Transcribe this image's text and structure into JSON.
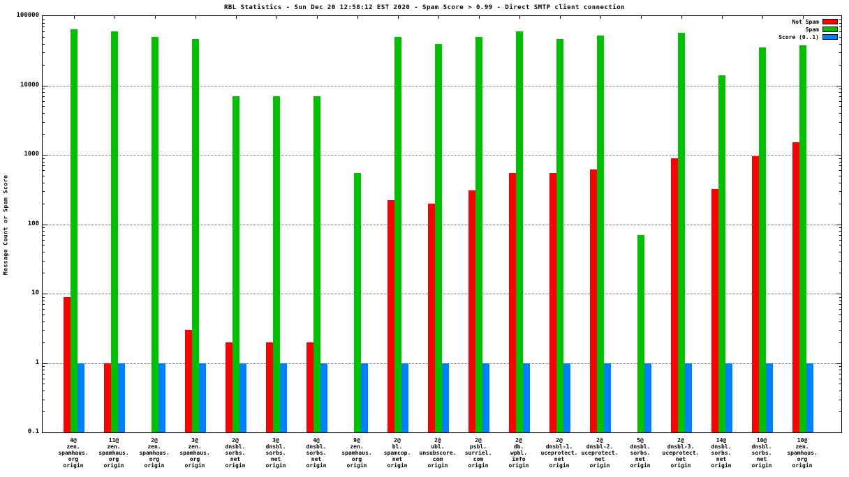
{
  "chart_data": {
    "type": "bar",
    "title": "RBL Statistics - Sun Dec 20 12:58:12 EST 2020 - Spam Score > 0.99 - Direct SMTP client connection",
    "ylabel": "Message Count or Spam Score",
    "yscale": "log",
    "ylim": [
      0.1,
      100000
    ],
    "ytick_labels": [
      "100000",
      "10000",
      "1000",
      "100",
      "10",
      "1",
      "0.1"
    ],
    "grid": true,
    "legend_position": "top-right",
    "categories": [
      [
        "4@",
        "zen.",
        "spamhaus.",
        "org",
        "origin"
      ],
      [
        "11@",
        "zen.",
        "spamhaus.",
        "org",
        "origin"
      ],
      [
        "2@",
        "zen.",
        "spamhaus.",
        "org",
        "origin"
      ],
      [
        "3@",
        "zen.",
        "spamhaus.",
        "org",
        "origin"
      ],
      [
        "2@",
        "dnsbl.",
        "sorbs.",
        "net",
        "origin"
      ],
      [
        "3@",
        "dnsbl.",
        "sorbs.",
        "net",
        "origin"
      ],
      [
        "4@",
        "dnsbl.",
        "sorbs.",
        "net",
        "origin"
      ],
      [
        "9@",
        "zen.",
        "spamhaus.",
        "org",
        "origin"
      ],
      [
        "2@",
        "bl.",
        "spamcop.",
        "net",
        "origin"
      ],
      [
        "2@",
        "ubl.",
        "unsubscore.",
        "com",
        "origin"
      ],
      [
        "2@",
        "psbl.",
        "surriel.",
        "com",
        "origin"
      ],
      [
        "2@",
        "db.",
        "wpbl.",
        "info",
        "origin"
      ],
      [
        "2@",
        "dnsbl-1.",
        "uceprotect.",
        "net",
        "origin"
      ],
      [
        "2@",
        "dnsbl-2.",
        "uceprotect.",
        "net",
        "origin"
      ],
      [
        "5@",
        "dnsbl.",
        "sorbs.",
        "net",
        "origin"
      ],
      [
        "2@",
        "dnsbl-3.",
        "uceprotect.",
        "net",
        "origin"
      ],
      [
        "14@",
        "dnsbl.",
        "sorbs.",
        "net",
        "origin"
      ],
      [
        "10@",
        "dnsbl.",
        "sorbs.",
        "net",
        "origin"
      ],
      [
        "10@",
        "zen.",
        "spamhaus.",
        "org",
        "origin"
      ]
    ],
    "series": [
      {
        "name": "Not Spam",
        "color": "#ff0000",
        "values": [
          9,
          1,
          0,
          3,
          2,
          2,
          2,
          0,
          220,
          200,
          310,
          550,
          550,
          620,
          0,
          900,
          320,
          950,
          1500
        ]
      },
      {
        "name": "Spam",
        "color": "#00c000",
        "values": [
          65000,
          60000,
          50000,
          47000,
          7000,
          7000,
          7000,
          550,
          50000,
          40000,
          50000,
          60000,
          47000,
          52000,
          70,
          58000,
          14000,
          35000,
          38000
        ]
      },
      {
        "name": "Score (0..1)",
        "color": "#0080ff",
        "values": [
          1,
          1,
          1,
          1,
          1,
          1,
          1,
          1,
          1,
          1,
          1,
          1,
          1,
          1,
          1,
          1,
          1,
          1,
          1
        ]
      }
    ]
  }
}
